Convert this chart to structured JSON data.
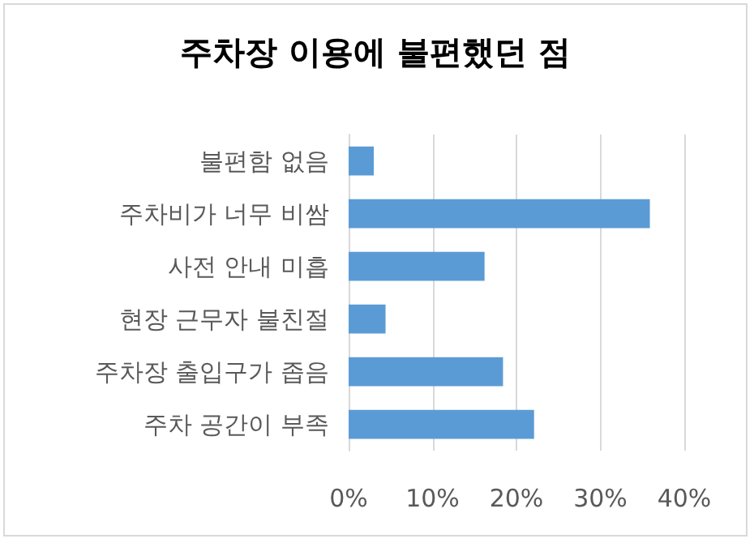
{
  "chart_data": {
    "type": "bar",
    "title": "주차장 이용에 불편했던 점",
    "orientation": "horizontal",
    "categories": [
      "불편함 없음",
      "주차비가 너무 비쌈",
      "사전 안내 미흡",
      "현장 근무자 불친절",
      "주차장 출입구가 좁음",
      "주차 공간이 부족"
    ],
    "values": [
      3.0,
      35.9,
      16.2,
      4.4,
      18.4,
      22.1
    ],
    "color": "#5b9bd5",
    "xlim": [
      0,
      40
    ],
    "xticks": [
      {
        "value": 0,
        "label": "0%"
      },
      {
        "value": 10,
        "label": "10%"
      },
      {
        "value": 20,
        "label": "20%"
      },
      {
        "value": 30,
        "label": "30%"
      },
      {
        "value": 40,
        "label": "40%"
      }
    ],
    "grid": "x"
  }
}
